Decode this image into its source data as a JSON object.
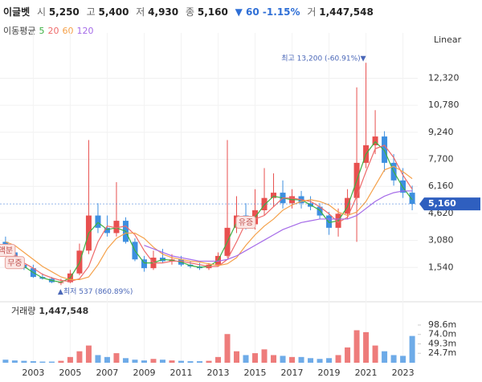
{
  "header": {
    "name": "이글벳",
    "quotes": [
      {
        "label": "시",
        "value": "5,250"
      },
      {
        "label": "고",
        "value": "5,400"
      },
      {
        "label": "저",
        "value": "4,930"
      },
      {
        "label": "종",
        "value": "5,160"
      }
    ],
    "change": "▼ 60 -1.15%",
    "volume_label": "거",
    "volume": "1,447,548",
    "ma_label": "이동평균"
  },
  "scale_label": "Linear",
  "chart_data": {
    "type": "candlestick",
    "up_color": "#e8504f",
    "down_color": "#3d8fe0",
    "x": [
      2001.5,
      2002,
      2002.5,
      2003,
      2003.5,
      2004,
      2004.5,
      2005,
      2005.5,
      2006,
      2006.5,
      2007,
      2007.5,
      2008,
      2008.5,
      2009,
      2009.5,
      2010,
      2010.5,
      2011,
      2011.5,
      2012,
      2012.5,
      2013,
      2013.5,
      2014,
      2014.5,
      2015,
      2015.5,
      2016,
      2016.5,
      2017,
      2017.5,
      2018,
      2018.5,
      2019,
      2019.5,
      2020,
      2020.5,
      2021,
      2021.5,
      2022,
      2022.5,
      2023,
      2023.5
    ],
    "open": [
      3000,
      2400,
      1700,
      1500,
      1000,
      900,
      700,
      700,
      1200,
      2500,
      4500,
      3800,
      3500,
      4200,
      3000,
      2000,
      1500,
      2100,
      1900,
      2000,
      1700,
      1600,
      1500,
      1700,
      2200,
      3800,
      4500,
      4000,
      4800,
      5500,
      5800,
      5200,
      5600,
      5200,
      5000,
      4500,
      3800,
      4600,
      5500,
      7500,
      8500,
      9000,
      7500,
      6500,
      5800
    ],
    "high": [
      3300,
      2600,
      1900,
      1700,
      1200,
      1000,
      900,
      1400,
      2900,
      8800,
      5200,
      4500,
      6400,
      4400,
      3200,
      2200,
      2500,
      2600,
      2300,
      2200,
      1900,
      1800,
      1800,
      2400,
      8800,
      5600,
      5200,
      6000,
      7200,
      6900,
      6500,
      6000,
      5900,
      5600,
      5200,
      4700,
      4900,
      6000,
      11800,
      13200,
      10500,
      9300,
      8000,
      7200,
      6200
    ],
    "low": [
      2300,
      1600,
      1400,
      950,
      850,
      650,
      537,
      650,
      1100,
      2300,
      3500,
      3300,
      3300,
      2900,
      1900,
      1300,
      1400,
      1800,
      1700,
      1600,
      1500,
      1400,
      1400,
      1600,
      2100,
      3500,
      3700,
      3700,
      4500,
      5000,
      4900,
      4900,
      4900,
      4800,
      4300,
      3400,
      3300,
      4300,
      3000,
      7200,
      8000,
      7000,
      6200,
      5500,
      4800
    ],
    "close": [
      2400,
      1700,
      1500,
      1000,
      900,
      700,
      700,
      1200,
      2500,
      4500,
      3800,
      3500,
      4200,
      3000,
      2000,
      1500,
      2100,
      1900,
      2000,
      1700,
      1600,
      1500,
      1700,
      2200,
      3800,
      4500,
      4000,
      4800,
      5500,
      5800,
      5200,
      5600,
      5200,
      5000,
      4500,
      3800,
      4600,
      5500,
      7500,
      8500,
      9000,
      7500,
      6500,
      5800,
      5160
    ],
    "series": [
      {
        "name": "5",
        "color": "#3cb043",
        "values": [
          2600,
          2000,
          1600,
          1250,
          950,
          800,
          700,
          950,
          1800,
          3500,
          4100,
          3700,
          3800,
          3600,
          2500,
          1800,
          1800,
          2000,
          1950,
          1850,
          1650,
          1550,
          1600,
          1950,
          3000,
          4100,
          4200,
          4400,
          5100,
          5600,
          5500,
          5400,
          5400,
          5100,
          4800,
          4100,
          4200,
          5000,
          6500,
          8000,
          8700,
          8200,
          7000,
          6100,
          5400
        ]
      },
      {
        "name": "20",
        "color": "#ee6a6a",
        "values": [
          2800,
          2300,
          1800,
          1500,
          1150,
          950,
          800,
          750,
          900,
          1600,
          3000,
          3900,
          3800,
          3900,
          3400,
          2500,
          1800,
          1800,
          1900,
          1900,
          1800,
          1700,
          1600,
          1600,
          2000,
          3000,
          4100,
          4300,
          4500,
          5000,
          5500,
          5500,
          5400,
          5300,
          5000,
          4600,
          4100,
          4400,
          5600,
          7000,
          8300,
          8500,
          7800,
          6800,
          6000
        ]
      },
      {
        "name": "60",
        "color": "#f5a14a",
        "values": [
          3000,
          2800,
          2400,
          2000,
          1600,
          1300,
          1000,
          850,
          850,
          1000,
          1700,
          2600,
          3200,
          3500,
          3500,
          3200,
          2700,
          2300,
          2100,
          2000,
          1900,
          1850,
          1750,
          1650,
          1750,
          2100,
          2800,
          3400,
          3900,
          4300,
          4800,
          5100,
          5300,
          5400,
          5300,
          5100,
          4700,
          4500,
          4700,
          5300,
          6200,
          7100,
          7300,
          7000,
          6600
        ]
      },
      {
        "name": "120",
        "color": "#a56be8",
        "values": [
          null,
          null,
          null,
          null,
          null,
          null,
          null,
          null,
          null,
          null,
          null,
          null,
          null,
          null,
          null,
          2800,
          2600,
          2400,
          2200,
          2100,
          2000,
          1900,
          1900,
          1900,
          2000,
          2200,
          2500,
          2800,
          3100,
          3400,
          3700,
          3900,
          4100,
          4200,
          4300,
          4300,
          4300,
          4300,
          4500,
          4900,
          5300,
          5600,
          5800,
          5900,
          5900
        ]
      }
    ],
    "xlim": [
      2001.2,
      2023.8
    ],
    "xticks": [
      2003,
      2005,
      2007,
      2009,
      2011,
      2013,
      2015,
      2017,
      2019,
      2021,
      2023
    ],
    "ylim": [
      0,
      14900
    ],
    "yticks": [
      {
        "value": 1540,
        "label": "1,540"
      },
      {
        "value": 3080,
        "label": "3,080"
      },
      {
        "value": 4620,
        "label": "4,620"
      },
      {
        "value": 6160,
        "label": "6,160"
      },
      {
        "value": 7700,
        "label": "7,700"
      },
      {
        "value": 9240,
        "label": "9,240"
      },
      {
        "value": 10780,
        "label": "10,780"
      },
      {
        "value": 12320,
        "label": "12,320"
      }
    ],
    "grid": true,
    "high_label": {
      "x": 2021,
      "value": 13200,
      "label": "최고 13,200 (-60.91%)▼"
    },
    "low_label": {
      "x": 2004.5,
      "value": 537,
      "label": "▲최저 537 (860.89%)"
    },
    "last_price": {
      "value": 5160,
      "label": "5,160"
    },
    "events": [
      {
        "x": 2001.5,
        "label": "액분"
      },
      {
        "x": 2002,
        "label": "무증"
      },
      {
        "x": 2014.5,
        "label": "유증"
      }
    ],
    "volume": {
      "label": "거래량",
      "total": "1,447,548",
      "values": [
        8,
        6,
        5,
        4,
        3,
        3,
        5,
        15,
        30,
        45,
        20,
        15,
        25,
        12,
        8,
        6,
        10,
        8,
        6,
        5,
        4,
        4,
        5,
        15,
        75,
        30,
        20,
        25,
        35,
        20,
        18,
        15,
        15,
        12,
        10,
        12,
        20,
        40,
        85,
        80,
        45,
        30,
        20,
        18,
        70
      ],
      "ylim": [
        0,
        119.6
      ],
      "yticks": [
        {
          "value": 24.7,
          "label": "24.7m"
        },
        {
          "value": 49.3,
          "label": "49.3m"
        },
        {
          "value": 74.0,
          "label": "74.0m"
        },
        {
          "value": 98.6,
          "label": "98.6m"
        }
      ]
    }
  }
}
